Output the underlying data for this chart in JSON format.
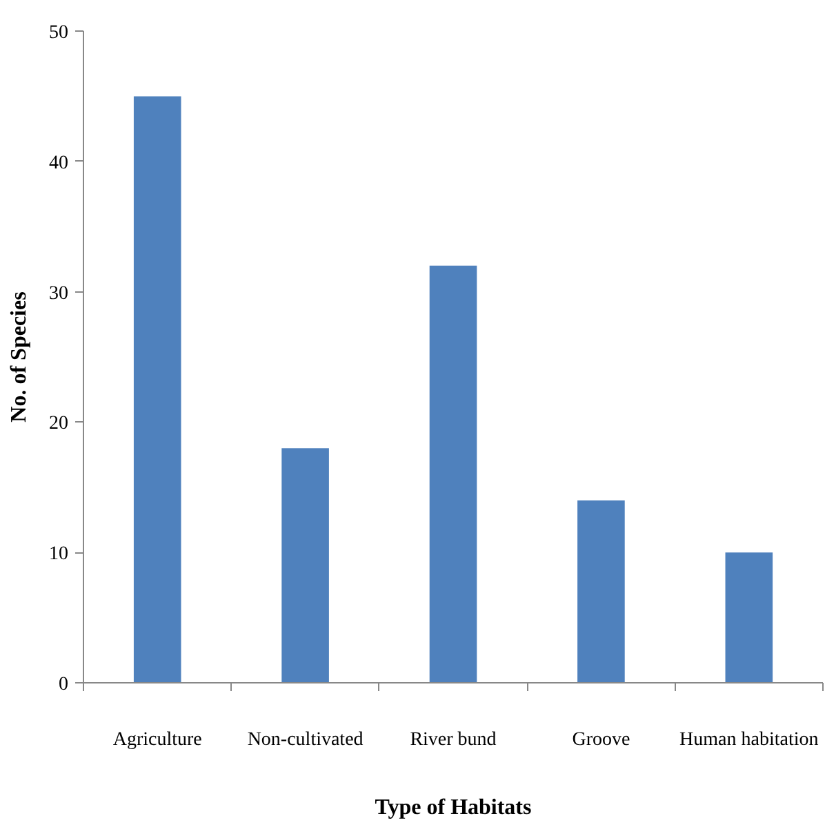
{
  "chart_data": {
    "type": "bar",
    "xlabel": "Type of Habitats",
    "ylabel": "No. of Species",
    "categories": [
      "Agriculture",
      "Non-cultivated",
      "River bund",
      "Groove",
      "Human habitation"
    ],
    "values": [
      45,
      18,
      32,
      14,
      10
    ],
    "color": "#4f81bd",
    "ylim": [
      0,
      50
    ],
    "yticks": [
      0,
      10,
      20,
      30,
      40,
      50
    ],
    "grid": false
  }
}
